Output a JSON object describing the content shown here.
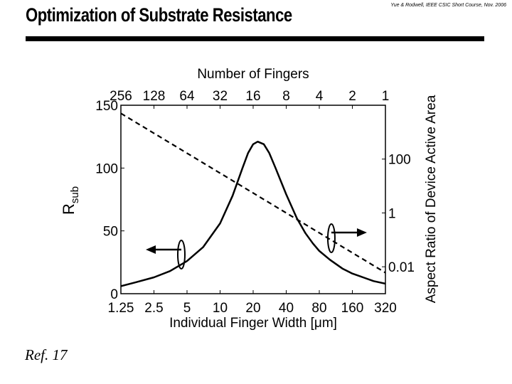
{
  "slide": {
    "title": "Optimization of Substrate Resistance",
    "credit": "Yue & Rodwell, IEEE CSIC Short Course, Nov. 2006",
    "reference": "Ref. 17"
  },
  "chart_data": {
    "type": "line",
    "top_axis_label": "Number of Fingers",
    "top_ticks": [
      "256",
      "128",
      "64",
      "32",
      "16",
      "8",
      "4",
      "2",
      "1"
    ],
    "x_axis_label": "Individual Finger Width [μm]",
    "x_ticks": [
      "1.25",
      "2.5",
      "5",
      "10",
      "20",
      "40",
      "80",
      "160",
      "320"
    ],
    "x_scale": "log2",
    "xlim": [
      1.25,
      320
    ],
    "y_left_label": "R",
    "y_left_label_sub": "sub",
    "y_left_ticks": [
      "0",
      "50",
      "100",
      "150"
    ],
    "ylim_left": [
      0,
      150
    ],
    "y_right_label": "Aspect Ratio of Device Active Area",
    "y_right_ticks": [
      "0.01",
      "1",
      "100"
    ],
    "y_right_scale": "log",
    "ylim_right": [
      0.001,
      10000
    ],
    "grid": false,
    "series": [
      {
        "axis": "left",
        "style": "solid",
        "x": [
          1.25,
          1.7,
          2.5,
          3.5,
          5,
          7,
          10,
          13,
          16,
          18,
          20,
          22,
          25,
          28,
          32,
          40,
          50,
          60,
          70,
          80,
          100,
          130,
          160,
          200,
          250,
          320
        ],
        "y": [
          6,
          9,
          13,
          18,
          26,
          37,
          56,
          78,
          100,
          112,
          119,
          121,
          119,
          112,
          100,
          79,
          60,
          48,
          40,
          34,
          27,
          20,
          16,
          13,
          10,
          8
        ]
      },
      {
        "axis": "right",
        "style": "dashed",
        "x": [
          1.25,
          320
        ],
        "y": [
          5000,
          0.006
        ]
      }
    ],
    "arrows": [
      {
        "points_to": "left axis",
        "near_x": 5
      },
      {
        "points_to": "right axis",
        "near_x": 100
      }
    ]
  }
}
